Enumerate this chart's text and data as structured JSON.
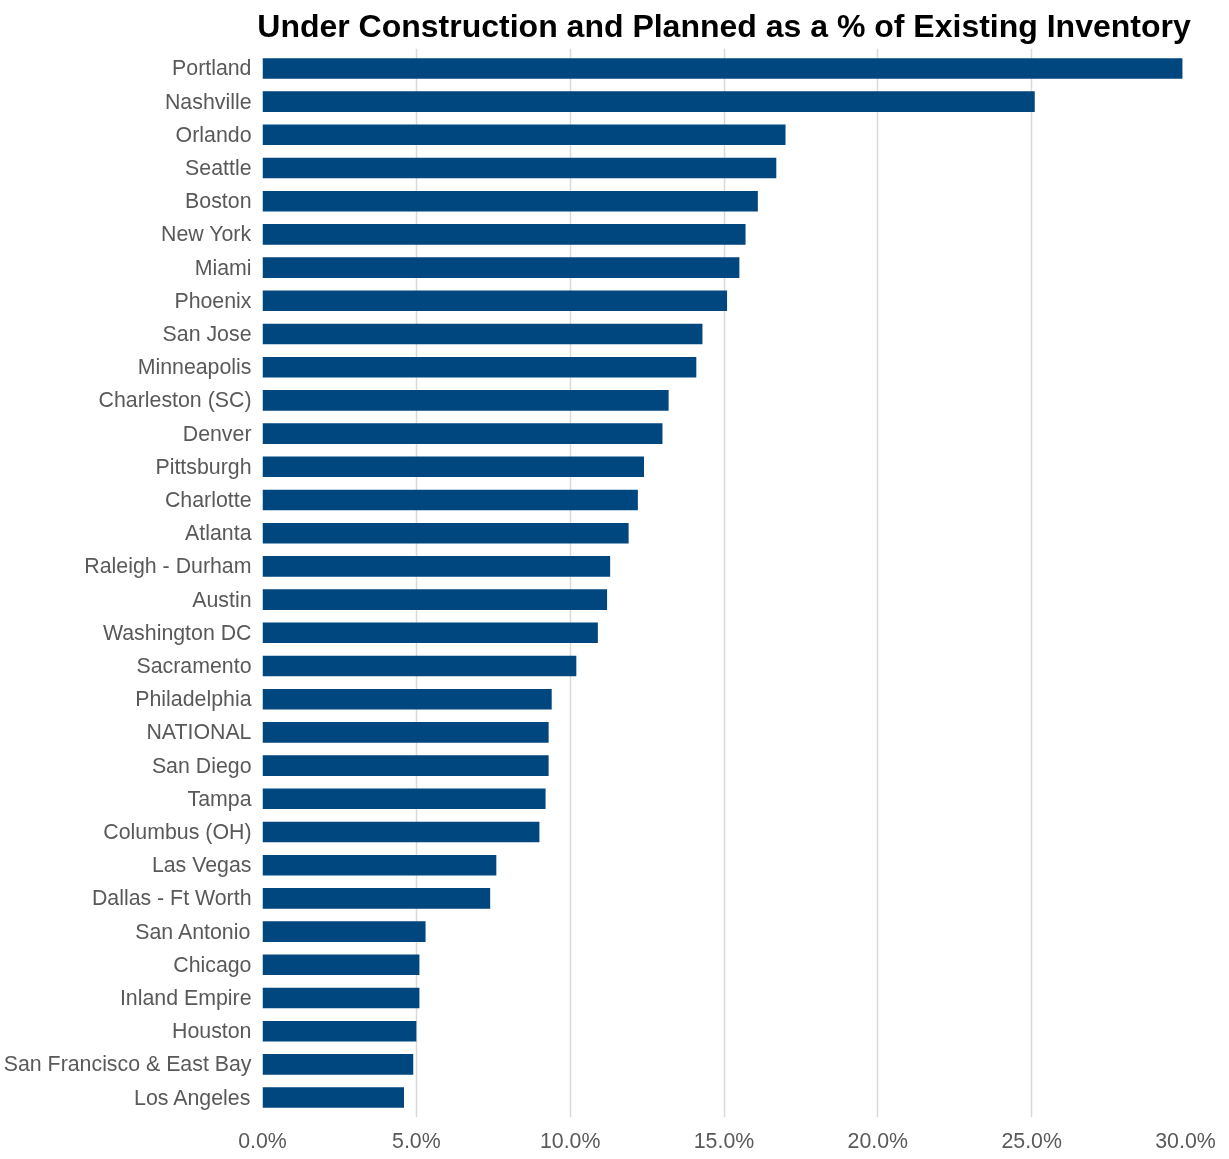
{
  "chart_data": {
    "type": "bar",
    "orientation": "horizontal",
    "title": "Under Construction and Planned as a % of Existing Inventory",
    "categories": [
      "Portland",
      "Nashville",
      "Orlando",
      "Seattle",
      "Boston",
      "New York",
      "Miami",
      "Phoenix",
      "San Jose",
      "Minneapolis",
      "Charleston (SC)",
      "Denver",
      "Pittsburgh",
      "Charlotte",
      "Atlanta",
      "Raleigh - Durham",
      "Austin",
      "Washington DC",
      "Sacramento",
      "Philadelphia",
      "NATIONAL",
      "San Diego",
      "Tampa",
      "Columbus (OH)",
      "Las Vegas",
      "Dallas - Ft Worth",
      "San Antonio",
      "Chicago",
      "Inland Empire",
      "Houston",
      "San Francisco & East Bay",
      "Los Angeles"
    ],
    "values": [
      29.9,
      25.1,
      17.0,
      16.7,
      16.1,
      15.7,
      15.5,
      15.1,
      14.3,
      14.1,
      13.2,
      13.0,
      12.4,
      12.2,
      11.9,
      11.3,
      11.2,
      10.9,
      10.2,
      9.4,
      9.3,
      9.3,
      9.2,
      9.0,
      7.6,
      7.4,
      5.3,
      5.1,
      5.1,
      5.0,
      4.9,
      4.6
    ],
    "color": "#00467f",
    "xlim": [
      0,
      30
    ],
    "xticks": [
      {
        "value": 0,
        "label": "0.0%"
      },
      {
        "value": 5,
        "label": "5.0%"
      },
      {
        "value": 10,
        "label": "10.0%"
      },
      {
        "value": 15,
        "label": "15.0%"
      },
      {
        "value": 20,
        "label": "20.0%"
      },
      {
        "value": 25,
        "label": "25.0%"
      },
      {
        "value": 30,
        "label": "30.0%"
      }
    ],
    "grid": "x"
  }
}
